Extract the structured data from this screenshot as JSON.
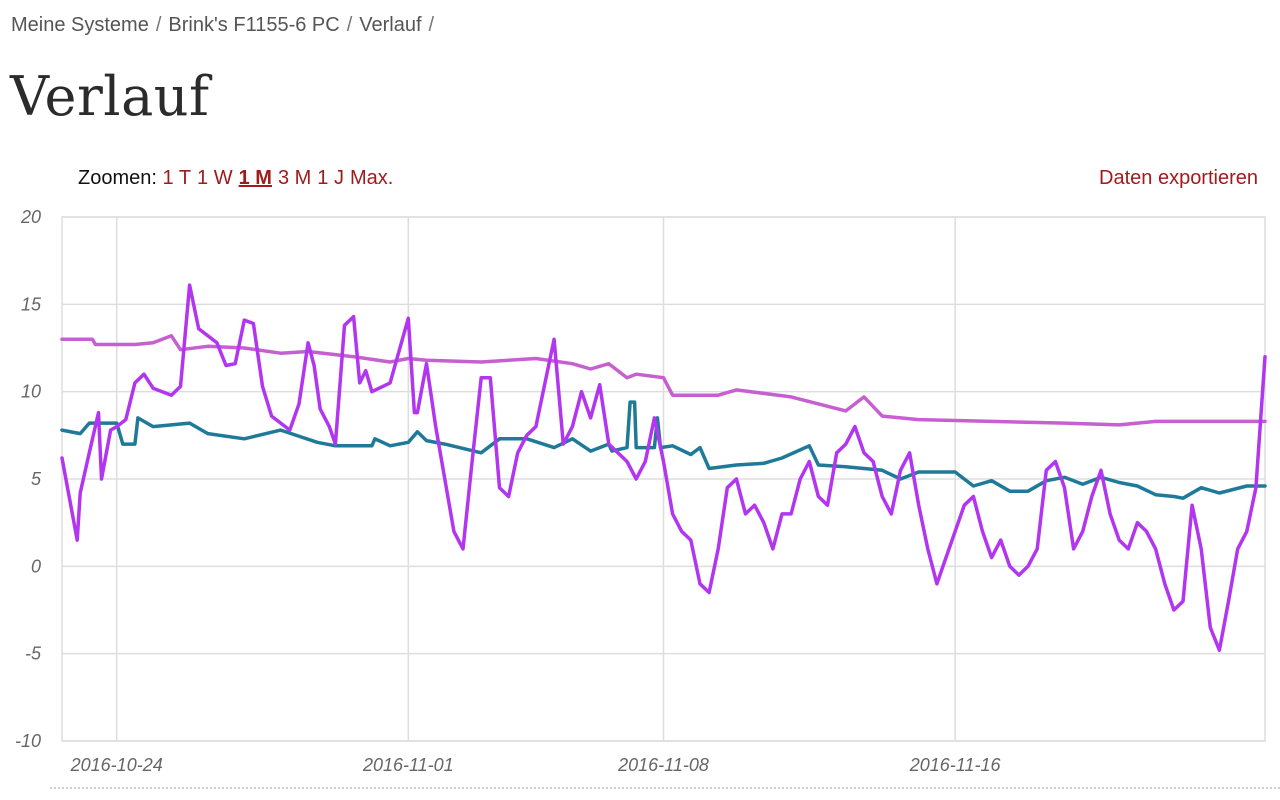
{
  "breadcrumb": {
    "items": [
      "Meine Systeme",
      "Brink's F1155-6 PC",
      "Verlauf"
    ],
    "separator": "/"
  },
  "page_title": "Verlauf",
  "zoom": {
    "label": "Zoomen:",
    "options": [
      "1 T",
      "1 W",
      "1 M",
      "3 M",
      "1 J",
      "Max."
    ],
    "active": "1 M"
  },
  "export_label": "Daten exportieren",
  "colors": {
    "accent": "#a11b1b",
    "series_magenta": "#c65fcf",
    "series_purple": "#b235f0",
    "series_teal": "#1f7a99",
    "grid": "#dddddd"
  },
  "chart_data": {
    "type": "line",
    "title": "",
    "xlabel": "",
    "ylabel": "",
    "x_type": "date",
    "xlim": [
      "2016-10-22T12:00",
      "2016-11-24T12:00"
    ],
    "ylim": [
      -10,
      20
    ],
    "y_ticks": [
      -10,
      -5,
      0,
      5,
      10,
      15,
      20
    ],
    "x_ticks": [
      "2016-10-24",
      "2016-11-01",
      "2016-11-08",
      "2016-11-16"
    ],
    "grid": true,
    "legend": "none",
    "series": [
      {
        "color": "#c65fcf",
        "points": [
          [
            "2016-10-22T12:00",
            13.0
          ],
          [
            "2016-10-23T08:00",
            13.0
          ],
          [
            "2016-10-23T10:00",
            12.7
          ],
          [
            "2016-10-24T12:00",
            12.7
          ],
          [
            "2016-10-25T00:00",
            12.8
          ],
          [
            "2016-10-25T12:00",
            13.2
          ],
          [
            "2016-10-25T18:00",
            12.4
          ],
          [
            "2016-10-26T12:00",
            12.6
          ],
          [
            "2016-10-27T12:00",
            12.5
          ],
          [
            "2016-10-28T12:00",
            12.2
          ],
          [
            "2016-10-29T06:00",
            12.3
          ],
          [
            "2016-10-30T12:00",
            12.0
          ],
          [
            "2016-10-31T12:00",
            11.7
          ],
          [
            "2016-11-01T00:00",
            11.9
          ],
          [
            "2016-11-01T12:00",
            11.8
          ],
          [
            "2016-11-03T00:00",
            11.7
          ],
          [
            "2016-11-04T12:00",
            11.9
          ],
          [
            "2016-11-05T12:00",
            11.6
          ],
          [
            "2016-11-06T00:00",
            11.3
          ],
          [
            "2016-11-06T12:00",
            11.6
          ],
          [
            "2016-11-07T00:00",
            10.8
          ],
          [
            "2016-11-07T06:00",
            11.0
          ],
          [
            "2016-11-08T00:00",
            10.8
          ],
          [
            "2016-11-08T06:00",
            9.8
          ],
          [
            "2016-11-09T12:00",
            9.8
          ],
          [
            "2016-11-10T00:00",
            10.1
          ],
          [
            "2016-11-11T12:00",
            9.7
          ],
          [
            "2016-11-13T00:00",
            8.9
          ],
          [
            "2016-11-13T12:00",
            9.7
          ],
          [
            "2016-11-14T00:00",
            8.6
          ],
          [
            "2016-11-15T00:00",
            8.4
          ],
          [
            "2016-11-17T00:00",
            8.3
          ],
          [
            "2016-11-19T00:00",
            8.2
          ],
          [
            "2016-11-20T12:00",
            8.1
          ],
          [
            "2016-11-21T12:00",
            8.3
          ],
          [
            "2016-11-24T12:00",
            8.3
          ]
        ]
      },
      {
        "color": "#1f7a99",
        "points": [
          [
            "2016-10-22T12:00",
            7.8
          ],
          [
            "2016-10-23T00:00",
            7.6
          ],
          [
            "2016-10-23T06:00",
            8.2
          ],
          [
            "2016-10-24T00:00",
            8.2
          ],
          [
            "2016-10-24T04:00",
            7.0
          ],
          [
            "2016-10-24T12:00",
            7.0
          ],
          [
            "2016-10-24T14:00",
            8.5
          ],
          [
            "2016-10-25T00:00",
            8.0
          ],
          [
            "2016-10-26T00:00",
            8.2
          ],
          [
            "2016-10-26T12:00",
            7.6
          ],
          [
            "2016-10-27T12:00",
            7.3
          ],
          [
            "2016-10-28T12:00",
            7.8
          ],
          [
            "2016-10-29T12:00",
            7.1
          ],
          [
            "2016-10-30T00:00",
            6.9
          ],
          [
            "2016-10-31T00:00",
            6.9
          ],
          [
            "2016-10-31T02:00",
            7.3
          ],
          [
            "2016-10-31T12:00",
            6.9
          ],
          [
            "2016-11-01T00:00",
            7.1
          ],
          [
            "2016-11-01T06:00",
            7.7
          ],
          [
            "2016-11-01T12:00",
            7.2
          ],
          [
            "2016-11-02T00:00",
            7.0
          ],
          [
            "2016-11-03T00:00",
            6.5
          ],
          [
            "2016-11-03T12:00",
            7.3
          ],
          [
            "2016-11-04T06:00",
            7.3
          ],
          [
            "2016-11-05T00:00",
            6.8
          ],
          [
            "2016-11-05T12:00",
            7.3
          ],
          [
            "2016-11-06T00:00",
            6.6
          ],
          [
            "2016-11-06T12:00",
            7.0
          ],
          [
            "2016-11-06T14:00",
            6.6
          ],
          [
            "2016-11-07T00:00",
            6.8
          ],
          [
            "2016-11-07T02:00",
            9.4
          ],
          [
            "2016-11-07T05:00",
            9.4
          ],
          [
            "2016-11-07T06:00",
            6.8
          ],
          [
            "2016-11-07T18:00",
            6.8
          ],
          [
            "2016-11-07T20:00",
            8.5
          ],
          [
            "2016-11-07T22:00",
            6.8
          ],
          [
            "2016-11-08T06:00",
            6.9
          ],
          [
            "2016-11-08T18:00",
            6.4
          ],
          [
            "2016-11-09T00:00",
            6.8
          ],
          [
            "2016-11-09T06:00",
            5.6
          ],
          [
            "2016-11-10T00:00",
            5.8
          ],
          [
            "2016-11-10T18:00",
            5.9
          ],
          [
            "2016-11-11T06:00",
            6.2
          ],
          [
            "2016-11-12T00:00",
            6.9
          ],
          [
            "2016-11-12T06:00",
            5.8
          ],
          [
            "2016-11-13T00:00",
            5.7
          ],
          [
            "2016-11-14T00:00",
            5.5
          ],
          [
            "2016-11-14T12:00",
            5.0
          ],
          [
            "2016-11-15T00:00",
            5.4
          ],
          [
            "2016-11-16T00:00",
            5.4
          ],
          [
            "2016-11-16T12:00",
            4.6
          ],
          [
            "2016-11-17T00:00",
            4.9
          ],
          [
            "2016-11-17T12:00",
            4.3
          ],
          [
            "2016-11-18T00:00",
            4.3
          ],
          [
            "2016-11-18T12:00",
            4.9
          ],
          [
            "2016-11-19T00:00",
            5.1
          ],
          [
            "2016-11-19T12:00",
            4.7
          ],
          [
            "2016-11-20T00:00",
            5.1
          ],
          [
            "2016-11-20T12:00",
            4.8
          ],
          [
            "2016-11-21T00:00",
            4.6
          ],
          [
            "2016-11-21T12:00",
            4.1
          ],
          [
            "2016-11-22T00:00",
            4.0
          ],
          [
            "2016-11-22T06:00",
            3.9
          ],
          [
            "2016-11-22T18:00",
            4.5
          ],
          [
            "2016-11-23T06:00",
            4.2
          ],
          [
            "2016-11-24T00:00",
            4.6
          ],
          [
            "2016-11-24T12:00",
            4.6
          ]
        ]
      },
      {
        "color": "#b235f0",
        "points": [
          [
            "2016-10-22T12:00",
            6.2
          ],
          [
            "2016-10-22T22:00",
            1.5
          ],
          [
            "2016-10-23T00:00",
            4.2
          ],
          [
            "2016-10-23T06:00",
            6.5
          ],
          [
            "2016-10-23T12:00",
            8.8
          ],
          [
            "2016-10-23T14:00",
            5.0
          ],
          [
            "2016-10-23T20:00",
            7.8
          ],
          [
            "2016-10-24T00:00",
            8.0
          ],
          [
            "2016-10-24T06:00",
            8.4
          ],
          [
            "2016-10-24T12:00",
            10.5
          ],
          [
            "2016-10-24T18:00",
            11.0
          ],
          [
            "2016-10-25T00:00",
            10.2
          ],
          [
            "2016-10-25T12:00",
            9.8
          ],
          [
            "2016-10-25T18:00",
            10.3
          ],
          [
            "2016-10-26T00:00",
            16.1
          ],
          [
            "2016-10-26T06:00",
            13.6
          ],
          [
            "2016-10-26T18:00",
            12.8
          ],
          [
            "2016-10-27T00:00",
            11.5
          ],
          [
            "2016-10-27T06:00",
            11.6
          ],
          [
            "2016-10-27T12:00",
            14.1
          ],
          [
            "2016-10-27T18:00",
            13.9
          ],
          [
            "2016-10-28T00:00",
            10.3
          ],
          [
            "2016-10-28T06:00",
            8.6
          ],
          [
            "2016-10-28T18:00",
            7.8
          ],
          [
            "2016-10-29T00:00",
            9.3
          ],
          [
            "2016-10-29T06:00",
            12.8
          ],
          [
            "2016-10-29T10:00",
            11.5
          ],
          [
            "2016-10-29T14:00",
            9.0
          ],
          [
            "2016-10-29T20:00",
            8.0
          ],
          [
            "2016-10-30T00:00",
            7.0
          ],
          [
            "2016-10-30T06:00",
            13.8
          ],
          [
            "2016-10-30T12:00",
            14.3
          ],
          [
            "2016-10-30T16:00",
            10.5
          ],
          [
            "2016-10-30T20:00",
            11.2
          ],
          [
            "2016-10-31T00:00",
            10.0
          ],
          [
            "2016-10-31T12:00",
            10.5
          ],
          [
            "2016-11-01T00:00",
            14.2
          ],
          [
            "2016-11-01T04:00",
            8.8
          ],
          [
            "2016-11-01T06:00",
            8.8
          ],
          [
            "2016-11-01T12:00",
            11.6
          ],
          [
            "2016-11-01T18:00",
            8.0
          ],
          [
            "2016-11-02T00:00",
            5.0
          ],
          [
            "2016-11-02T06:00",
            2.0
          ],
          [
            "2016-11-02T12:00",
            1.0
          ],
          [
            "2016-11-02T18:00",
            6.0
          ],
          [
            "2016-11-03T00:00",
            10.8
          ],
          [
            "2016-11-03T06:00",
            10.8
          ],
          [
            "2016-11-03T12:00",
            4.5
          ],
          [
            "2016-11-03T18:00",
            4.0
          ],
          [
            "2016-11-04T00:00",
            6.5
          ],
          [
            "2016-11-04T06:00",
            7.5
          ],
          [
            "2016-11-04T12:00",
            8.0
          ],
          [
            "2016-11-04T18:00",
            10.5
          ],
          [
            "2016-11-05T00:00",
            13.0
          ],
          [
            "2016-11-05T06:00",
            7.0
          ],
          [
            "2016-11-05T12:00",
            8.0
          ],
          [
            "2016-11-05T18:00",
            10.0
          ],
          [
            "2016-11-06T00:00",
            8.5
          ],
          [
            "2016-11-06T06:00",
            10.4
          ],
          [
            "2016-11-06T12:00",
            7.0
          ],
          [
            "2016-11-06T18:00",
            6.5
          ],
          [
            "2016-11-07T00:00",
            6.0
          ],
          [
            "2016-11-07T06:00",
            5.0
          ],
          [
            "2016-11-07T12:00",
            6.0
          ],
          [
            "2016-11-07T18:00",
            8.5
          ],
          [
            "2016-11-08T00:00",
            6.0
          ],
          [
            "2016-11-08T06:00",
            3.0
          ],
          [
            "2016-11-08T12:00",
            2.0
          ],
          [
            "2016-11-08T18:00",
            1.5
          ],
          [
            "2016-11-09T00:00",
            -1.0
          ],
          [
            "2016-11-09T06:00",
            -1.5
          ],
          [
            "2016-11-09T12:00",
            1.0
          ],
          [
            "2016-11-09T18:00",
            4.5
          ],
          [
            "2016-11-10T00:00",
            5.0
          ],
          [
            "2016-11-10T06:00",
            3.0
          ],
          [
            "2016-11-10T12:00",
            3.5
          ],
          [
            "2016-11-10T18:00",
            2.5
          ],
          [
            "2016-11-11T00:00",
            1.0
          ],
          [
            "2016-11-11T06:00",
            3.0
          ],
          [
            "2016-11-11T12:00",
            3.0
          ],
          [
            "2016-11-11T18:00",
            5.0
          ],
          [
            "2016-11-12T00:00",
            6.0
          ],
          [
            "2016-11-12T06:00",
            4.0
          ],
          [
            "2016-11-12T12:00",
            3.5
          ],
          [
            "2016-11-12T18:00",
            6.5
          ],
          [
            "2016-11-13T00:00",
            7.0
          ],
          [
            "2016-11-13T06:00",
            8.0
          ],
          [
            "2016-11-13T12:00",
            6.5
          ],
          [
            "2016-11-13T18:00",
            6.0
          ],
          [
            "2016-11-14T00:00",
            4.0
          ],
          [
            "2016-11-14T06:00",
            3.0
          ],
          [
            "2016-11-14T12:00",
            5.5
          ],
          [
            "2016-11-14T18:00",
            6.5
          ],
          [
            "2016-11-15T00:00",
            3.5
          ],
          [
            "2016-11-15T06:00",
            1.0
          ],
          [
            "2016-11-15T12:00",
            -1.0
          ],
          [
            "2016-11-15T18:00",
            0.5
          ],
          [
            "2016-11-16T00:00",
            2.0
          ],
          [
            "2016-11-16T06:00",
            3.5
          ],
          [
            "2016-11-16T12:00",
            4.0
          ],
          [
            "2016-11-16T18:00",
            2.0
          ],
          [
            "2016-11-17T00:00",
            0.5
          ],
          [
            "2016-11-17T06:00",
            1.5
          ],
          [
            "2016-11-17T12:00",
            0.0
          ],
          [
            "2016-11-17T18:00",
            -0.5
          ],
          [
            "2016-11-18T00:00",
            0.0
          ],
          [
            "2016-11-18T06:00",
            1.0
          ],
          [
            "2016-11-18T12:00",
            5.5
          ],
          [
            "2016-11-18T18:00",
            6.0
          ],
          [
            "2016-11-19T00:00",
            4.5
          ],
          [
            "2016-11-19T06:00",
            1.0
          ],
          [
            "2016-11-19T12:00",
            2.0
          ],
          [
            "2016-11-19T18:00",
            4.0
          ],
          [
            "2016-11-20T00:00",
            5.5
          ],
          [
            "2016-11-20T06:00",
            3.0
          ],
          [
            "2016-11-20T12:00",
            1.5
          ],
          [
            "2016-11-20T18:00",
            1.0
          ],
          [
            "2016-11-21T00:00",
            2.5
          ],
          [
            "2016-11-21T06:00",
            2.0
          ],
          [
            "2016-11-21T12:00",
            1.0
          ],
          [
            "2016-11-21T18:00",
            -1.0
          ],
          [
            "2016-11-22T00:00",
            -2.5
          ],
          [
            "2016-11-22T06:00",
            -2.0
          ],
          [
            "2016-11-22T12:00",
            3.5
          ],
          [
            "2016-11-22T18:00",
            1.0
          ],
          [
            "2016-11-23T00:00",
            -3.5
          ],
          [
            "2016-11-23T06:00",
            -4.8
          ],
          [
            "2016-11-23T12:00",
            -2.0
          ],
          [
            "2016-11-23T18:00",
            1.0
          ],
          [
            "2016-11-24T00:00",
            2.0
          ],
          [
            "2016-11-24T06:00",
            4.5
          ],
          [
            "2016-11-24T12:00",
            12.0
          ]
        ]
      }
    ]
  }
}
